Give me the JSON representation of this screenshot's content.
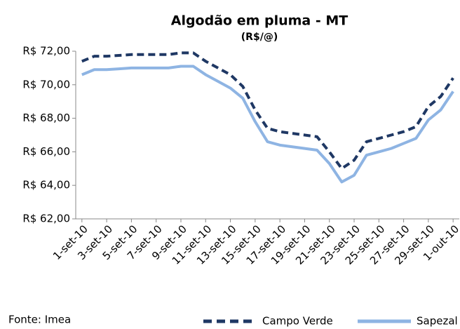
{
  "chart_data": {
    "type": "line",
    "title": "Algodão em pluma - MT",
    "subtitle": "(R$/@)",
    "source": "Fonte: Imea",
    "categories": [
      "1-set-10",
      null,
      "3-set-10",
      null,
      "5-set-10",
      null,
      "7-set-10",
      null,
      "9-set-10",
      null,
      "11-set-10",
      null,
      "13-set-10",
      null,
      "15-set-10",
      null,
      "17-set-10",
      null,
      "19-set-10",
      null,
      "21-set-10",
      null,
      "23-set-10",
      null,
      "25-set-10",
      null,
      "27-set-10",
      null,
      "29-set-10",
      null,
      "1-out-10"
    ],
    "series": [
      {
        "name": "Campo Verde",
        "color": "#1f3864",
        "dash": true,
        "values": [
          71.4,
          71.7,
          71.7,
          71.75,
          71.8,
          71.8,
          71.8,
          71.8,
          71.9,
          71.9,
          71.4,
          71.0,
          70.6,
          69.9,
          68.5,
          67.4,
          67.2,
          67.1,
          67.0,
          66.9,
          66.0,
          65.0,
          65.5,
          66.6,
          66.8,
          67.0,
          67.2,
          67.5,
          68.7,
          69.3,
          70.4
        ]
      },
      {
        "name": "Sapezal",
        "color": "#8eb4e3",
        "dash": false,
        "values": [
          70.6,
          70.9,
          70.9,
          70.95,
          71.0,
          71.0,
          71.0,
          71.0,
          71.1,
          71.1,
          70.6,
          70.2,
          69.8,
          69.2,
          67.8,
          66.6,
          66.4,
          66.3,
          66.2,
          66.1,
          65.3,
          64.2,
          64.6,
          65.8,
          66.0,
          66.2,
          66.5,
          66.8,
          67.9,
          68.5,
          69.6
        ]
      }
    ],
    "ylim": [
      62,
      72
    ],
    "yticks": [
      {
        "value": 62,
        "label": "R$ 62,00"
      },
      {
        "value": 64,
        "label": "R$ 64,00"
      },
      {
        "value": 66,
        "label": "R$ 66,00"
      },
      {
        "value": 68,
        "label": "R$ 68,00"
      },
      {
        "value": 70,
        "label": "R$ 70,00"
      },
      {
        "value": 72,
        "label": "R$ 72,00"
      }
    ]
  }
}
